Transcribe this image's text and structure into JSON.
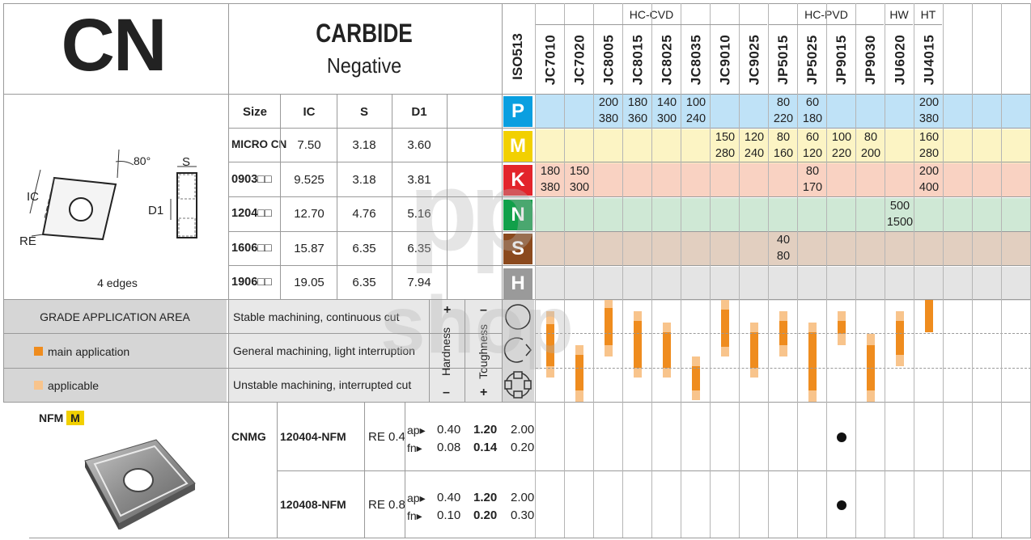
{
  "header": {
    "designation": "CN",
    "material": "CARBIDE",
    "type": "Negative",
    "standard": "ISO513"
  },
  "grade_groups": [
    {
      "label": "HC-CVD"
    },
    {
      "label": "HC-PVD"
    },
    {
      "label": "HW"
    },
    {
      "label": "HT"
    }
  ],
  "grades": [
    "JC7010",
    "JC7020",
    "JC8005",
    "JC8015",
    "JC8025",
    "JC8035",
    "JC9010",
    "JC9025",
    "JP5015",
    "JP5025",
    "JP9015",
    "JP9030",
    "JU6020",
    "JU4015"
  ],
  "insert_drawing": {
    "labels": {
      "angle": "80°",
      "s": "S",
      "ic": "IC",
      "d1": "D1",
      "re": "RE"
    },
    "edges": "4 edges"
  },
  "size_table": {
    "headers": [
      "Size",
      "IC",
      "S",
      "D1"
    ],
    "rows": [
      {
        "size": "MICRO CN",
        "ic": "7.50",
        "s": "3.18",
        "d1": "3.60"
      },
      {
        "size": "0903□□",
        "ic": "9.525",
        "s": "3.18",
        "d1": "3.81"
      },
      {
        "size": "1204□□",
        "ic": "12.70",
        "s": "4.76",
        "d1": "5.16"
      },
      {
        "size": "1606□□",
        "ic": "15.87",
        "s": "6.35",
        "d1": "6.35"
      },
      {
        "size": "1906□□",
        "ic": "19.05",
        "s": "6.35",
        "d1": "7.94"
      }
    ]
  },
  "materials": [
    {
      "letter": "P",
      "color": "#0a9fe0",
      "band": "#bfe2f7"
    },
    {
      "letter": "M",
      "color": "#f2d000",
      "band": "#fcf4c4"
    },
    {
      "letter": "K",
      "color": "#e3242b",
      "band": "#f9d2c2"
    },
    {
      "letter": "N",
      "color": "#11a04a",
      "band": "#cfe8d5"
    },
    {
      "letter": "S",
      "color": "#8b4a1e",
      "band": "#e2cfc0"
    },
    {
      "letter": "H",
      "color": "#9a9a9a",
      "band": "#e4e4e4"
    }
  ],
  "speeds": {
    "P": [
      [
        2,
        "200",
        "380"
      ],
      [
        3,
        "180",
        "360"
      ],
      [
        4,
        "140",
        "300"
      ],
      [
        5,
        "100",
        "240"
      ],
      [
        8,
        "80",
        "220"
      ],
      [
        9,
        "60",
        "180"
      ],
      [
        13,
        "200",
        "380"
      ]
    ],
    "M": [
      [
        6,
        "150",
        "280"
      ],
      [
        7,
        "120",
        "240"
      ],
      [
        8,
        "80",
        "160"
      ],
      [
        9,
        "60",
        "120"
      ],
      [
        10,
        "100",
        "220"
      ],
      [
        11,
        "80",
        "200"
      ],
      [
        13,
        "160",
        "280"
      ]
    ],
    "K": [
      [
        0,
        "180",
        "380"
      ],
      [
        1,
        "150",
        "300"
      ],
      [
        9,
        "80",
        "170"
      ],
      [
        13,
        "200",
        "400"
      ]
    ],
    "N": [
      [
        12,
        "500",
        "1500"
      ]
    ],
    "S": [
      [
        8,
        "40",
        "80"
      ]
    ],
    "H": []
  },
  "application": {
    "area_title": "GRADE APPLICATION AREA",
    "main_label": "main application",
    "applicable_label": "applicable",
    "main_color": "#ef8c1e",
    "applicable_color": "#f8c48c",
    "conditions": [
      "Stable machining, continuous cut",
      "General machining, light interruption",
      "Unstable machining, interrupted cut"
    ],
    "hardness": {
      "label": "Hardness",
      "plus": "+",
      "minus": "–"
    },
    "toughness": {
      "label": "Toughness",
      "minus": "–",
      "plus": "+"
    }
  },
  "chipbreaker": {
    "name": "NFM",
    "badge": "M",
    "badge_color": "#f2d000",
    "family": "CNMG",
    "rows": [
      {
        "code": "120404-NFM",
        "re": "RE 0.4",
        "ap_label": "ap▸",
        "ap": [
          "0.40",
          "1.20",
          "2.00"
        ],
        "fn_label": "fn▸",
        "fn": [
          "0.08",
          "0.14",
          "0.20"
        ],
        "grade": "JP9015"
      },
      {
        "code": "120408-NFM",
        "re": "RE 0.8",
        "ap_label": "ap▸",
        "ap": [
          "0.40",
          "1.20",
          "2.00"
        ],
        "fn_label": "fn▸",
        "fn": [
          "0.10",
          "0.20",
          "0.30"
        ],
        "grade": "JP9015"
      }
    ]
  },
  "watermark": {
    "line1": "pp",
    "line2": "shop"
  }
}
